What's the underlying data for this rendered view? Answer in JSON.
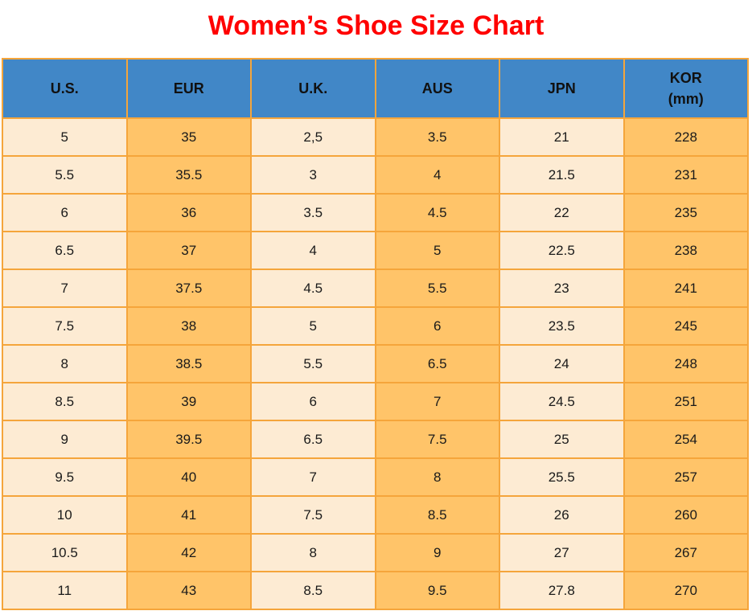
{
  "title": "Women’s Shoe Size Chart",
  "colors": {
    "title_red": "#ff0000",
    "header_blue": "#4187c7",
    "col_cream": "#fdebd3",
    "col_orange": "#ffc469",
    "grid_orange": "#f5a53b",
    "text_dark": "#1a1a1a"
  },
  "kor_header": {
    "line1": "KOR",
    "line2": "(mm)"
  },
  "chart_data": {
    "type": "table",
    "title": "Women’s Shoe Size Chart",
    "columns": [
      "U.S.",
      "EUR",
      "U.K.",
      "AUS",
      "JPN",
      "KOR (mm)"
    ],
    "rows": [
      [
        "5",
        "35",
        "2,5",
        "3.5",
        "21",
        "228"
      ],
      [
        "5.5",
        "35.5",
        "3",
        "4",
        "21.5",
        "231"
      ],
      [
        "6",
        "36",
        "3.5",
        "4.5",
        "22",
        "235"
      ],
      [
        "6.5",
        "37",
        "4",
        "5",
        "22.5",
        "238"
      ],
      [
        "7",
        "37.5",
        "4.5",
        "5.5",
        "23",
        "241"
      ],
      [
        "7.5",
        "38",
        "5",
        "6",
        "23.5",
        "245"
      ],
      [
        "8",
        "38.5",
        "5.5",
        "6.5",
        "24",
        "248"
      ],
      [
        "8.5",
        "39",
        "6",
        "7",
        "24.5",
        "251"
      ],
      [
        "9",
        "39.5",
        "6.5",
        "7.5",
        "25",
        "254"
      ],
      [
        "9.5",
        "40",
        "7",
        "8",
        "25.5",
        "257"
      ],
      [
        "10",
        "41",
        "7.5",
        "8.5",
        "26",
        "260"
      ],
      [
        "10.5",
        "42",
        "8",
        "9",
        "27",
        "267"
      ],
      [
        "11",
        "43",
        "8.5",
        "9.5",
        "27.8",
        "270"
      ]
    ],
    "layout": {
      "grid": true,
      "header_fill": "blue",
      "body_column_stripes": [
        "cream",
        "orange",
        "cream",
        "orange",
        "cream",
        "orange"
      ]
    }
  }
}
